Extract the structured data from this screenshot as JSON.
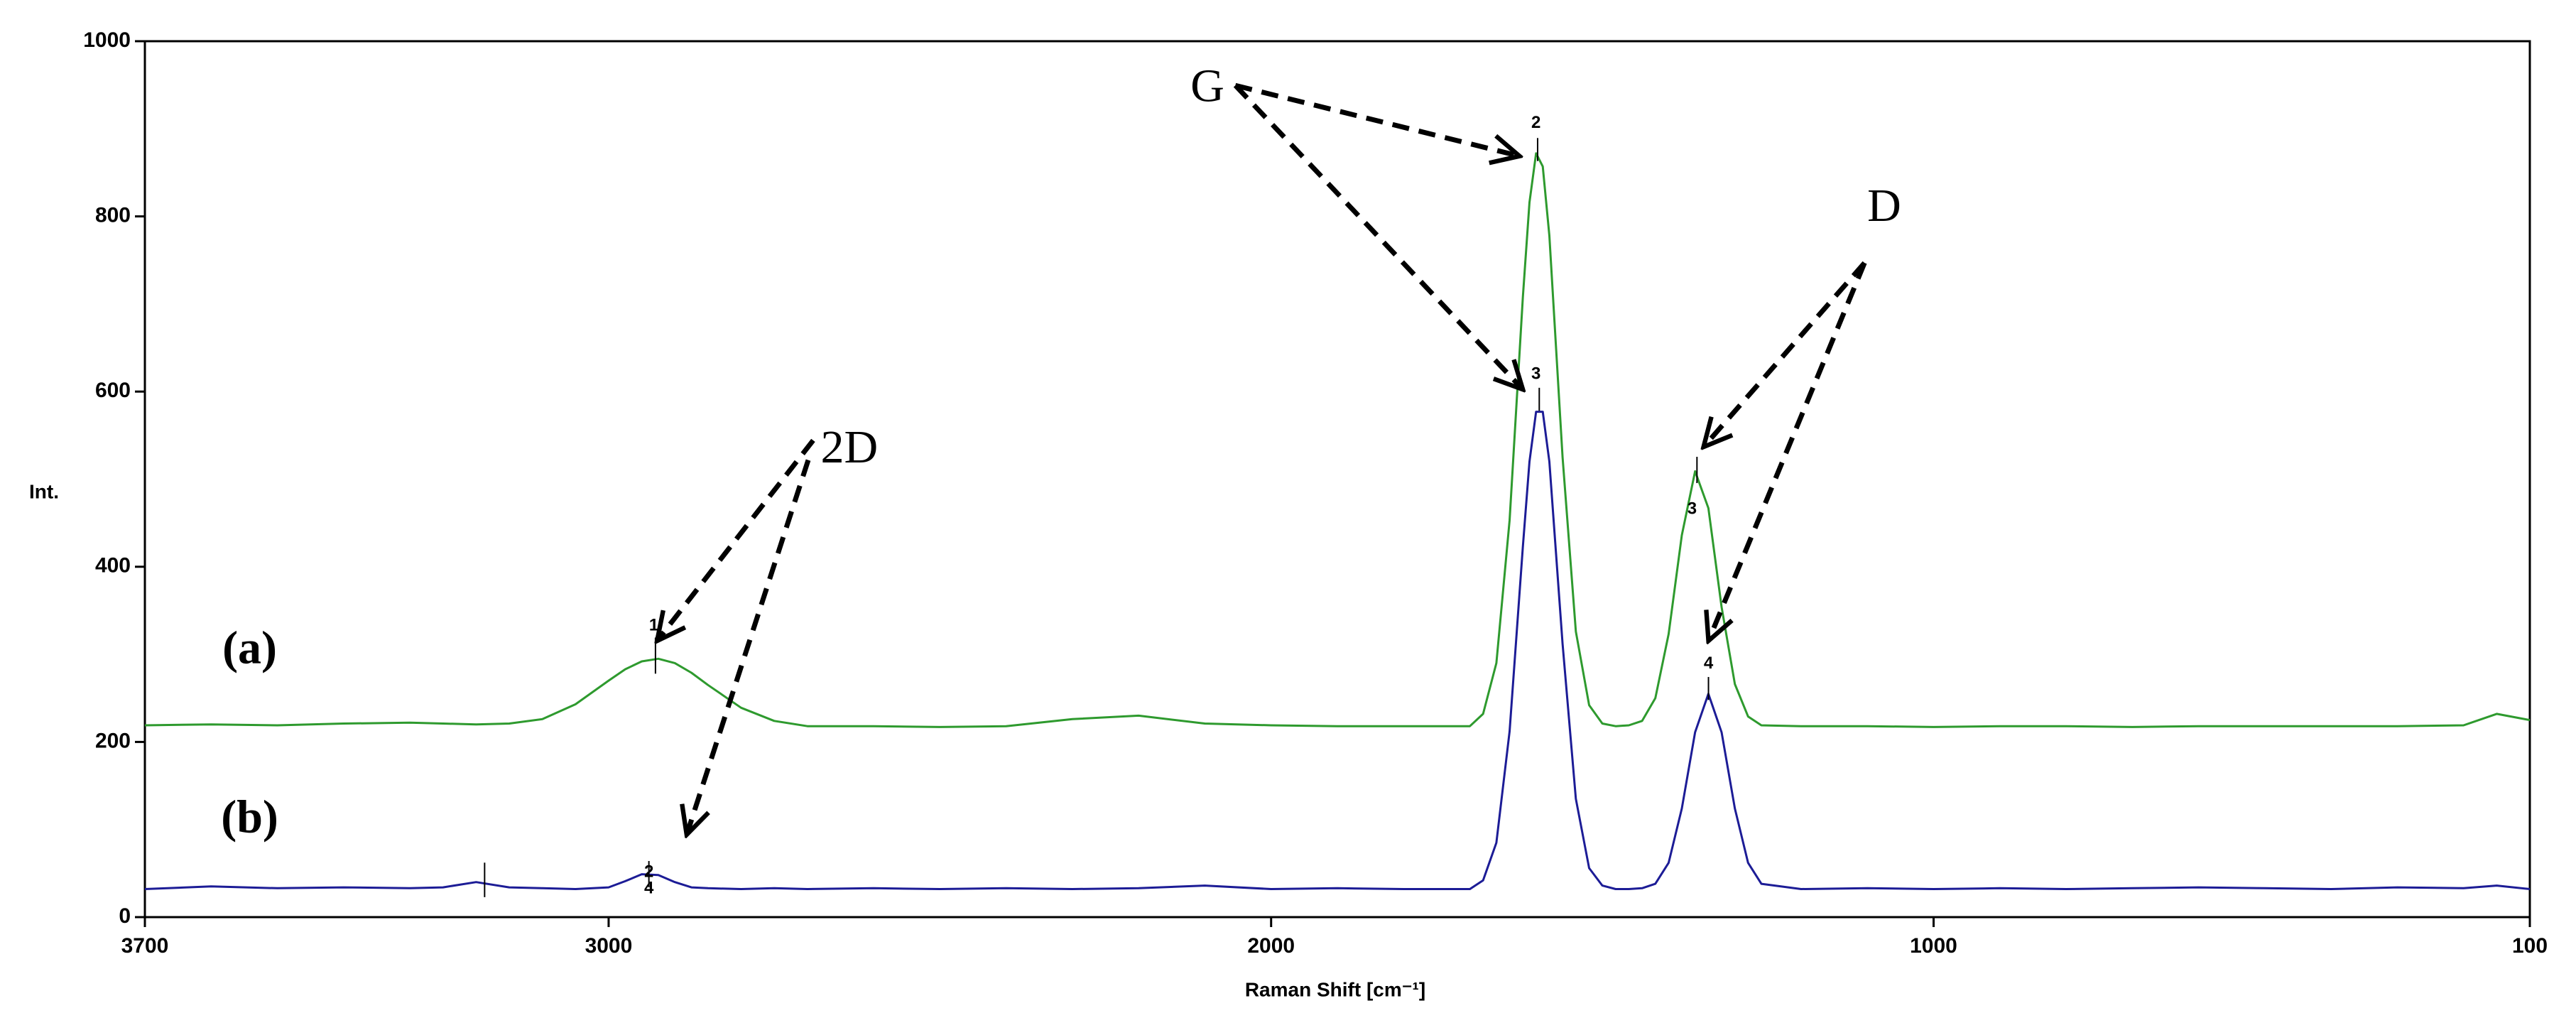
{
  "chart_data": {
    "type": "line",
    "x_label": "Raman Shift [cm⁻¹]",
    "y_label": "Int.",
    "x": [
      3700,
      3600,
      3500,
      3400,
      3300,
      3250,
      3200,
      3150,
      3100,
      3050,
      3000,
      2975,
      2950,
      2925,
      2900,
      2875,
      2850,
      2800,
      2750,
      2700,
      2600,
      2500,
      2400,
      2300,
      2200,
      2100,
      2000,
      1900,
      1800,
      1700,
      1680,
      1660,
      1640,
      1620,
      1610,
      1600,
      1590,
      1580,
      1560,
      1540,
      1520,
      1500,
      1480,
      1460,
      1440,
      1420,
      1400,
      1380,
      1360,
      1340,
      1320,
      1300,
      1280,
      1260,
      1200,
      1100,
      1000,
      900,
      800,
      700,
      600,
      500,
      400,
      300,
      200,
      150,
      100
    ],
    "series": [
      {
        "name": "(a)",
        "color": "#2e9a2e",
        "values": [
          219,
          220,
          219,
          221,
          222,
          221,
          220,
          221,
          226,
          243,
          270,
          283,
          292,
          295,
          290,
          279,
          265,
          239,
          224,
          218,
          218,
          217,
          218,
          226,
          230,
          221,
          219,
          218,
          218,
          218,
          232,
          290,
          453,
          708,
          816,
          872,
          857,
          778,
          525,
          326,
          242,
          221,
          218,
          219,
          224,
          250,
          323,
          436,
          509,
          467,
          354,
          266,
          229,
          219,
          218,
          218,
          217,
          218,
          218,
          217,
          218,
          218,
          218,
          218,
          219,
          232,
          225
        ]
      },
      {
        "name": "(b)",
        "color": "#1c1c96",
        "values": [
          32,
          35,
          33,
          34,
          33,
          34,
          40,
          34,
          33,
          32,
          34,
          41,
          49,
          48,
          40,
          34,
          33,
          32,
          33,
          32,
          33,
          32,
          33,
          32,
          33,
          36,
          32,
          33,
          32,
          32,
          42,
          85,
          212,
          423,
          520,
          577,
          577,
          520,
          312,
          135,
          56,
          36,
          32,
          32,
          33,
          38,
          62,
          124,
          211,
          255,
          211,
          124,
          62,
          38,
          32,
          33,
          32,
          33,
          32,
          33,
          34,
          33,
          32,
          34,
          33,
          36,
          32
        ]
      }
    ],
    "xlim": [
      3700,
      100
    ],
    "xticks": [
      3700,
      3000,
      2000,
      1000,
      100
    ],
    "ylim": [
      0,
      1000
    ],
    "yticks": [
      0,
      200,
      400,
      600,
      800,
      1000
    ],
    "peak_labels": [
      1,
      2,
      3,
      3,
      4,
      2,
      4
    ],
    "annotations": [
      "G",
      "D",
      "2D"
    ]
  }
}
